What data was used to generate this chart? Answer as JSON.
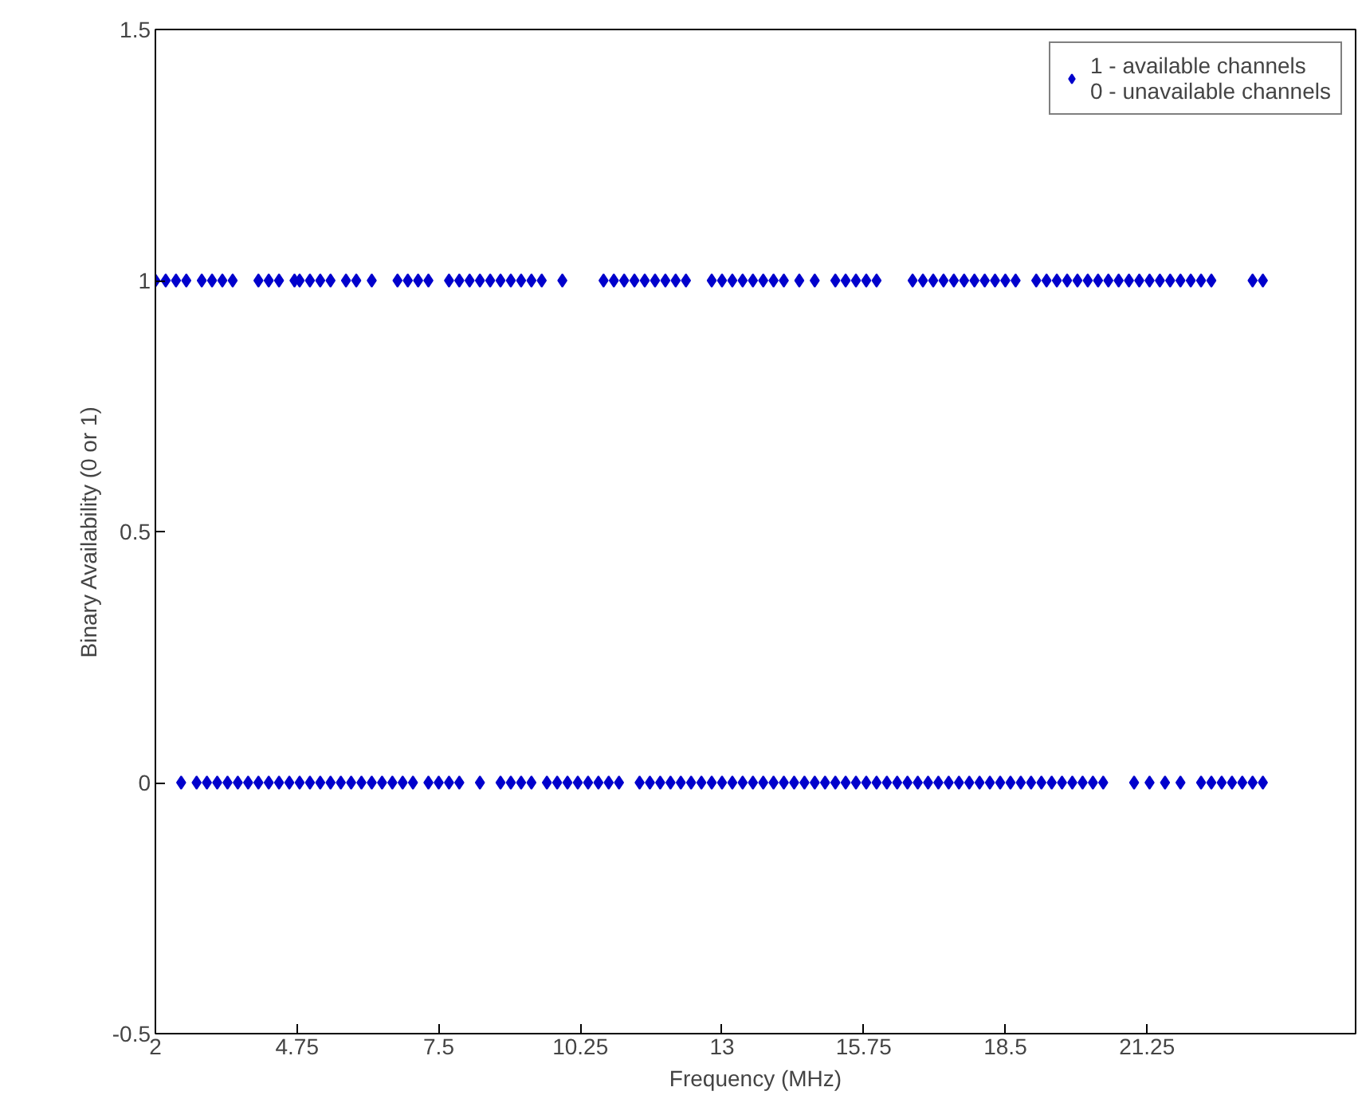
{
  "chart_data": {
    "type": "scatter",
    "xlabel": "Frequency (MHz)",
    "ylabel": "Binary Availability (0 or 1)",
    "xlim": [
      2,
      25.3
    ],
    "xticks": [
      2,
      4.75,
      7.5,
      10.25,
      13,
      15.75,
      18.5,
      21.25
    ],
    "ylim": [
      -0.5,
      1.5
    ],
    "yticks": [
      -0.5,
      0,
      0.5,
      1,
      1.5
    ],
    "grid": false,
    "legend": "top right",
    "marker": "diamond",
    "series": [
      {
        "name": "1 - available channels\n0 - unavailable channels",
        "color": "#0000cc",
        "x": [
          2.0,
          2.2,
          2.4,
          2.6,
          2.9,
          3.1,
          3.3,
          3.5,
          4.0,
          4.2,
          4.4,
          4.7,
          4.8,
          5.0,
          5.2,
          5.4,
          5.7,
          5.9,
          6.2,
          6.7,
          6.9,
          7.1,
          7.3,
          7.7,
          7.9,
          8.1,
          8.3,
          8.5,
          8.7,
          8.9,
          9.1,
          9.3,
          9.5,
          9.9,
          10.7,
          10.9,
          11.1,
          11.3,
          11.5,
          11.7,
          11.9,
          12.1,
          12.3,
          12.8,
          13.0,
          13.2,
          13.4,
          13.6,
          13.8,
          14.0,
          14.2,
          14.5,
          14.8,
          15.2,
          15.4,
          15.6,
          15.8,
          16.0,
          16.7,
          16.9,
          17.1,
          17.3,
          17.5,
          17.7,
          17.9,
          18.1,
          18.3,
          18.5,
          18.7,
          19.1,
          19.3,
          19.5,
          19.7,
          19.9,
          20.1,
          20.3,
          20.5,
          20.7,
          20.9,
          21.1,
          21.3,
          21.5,
          21.7,
          21.9,
          22.1,
          22.3,
          22.5,
          23.3,
          23.5,
          2.5,
          2.8,
          3.0,
          3.2,
          3.4,
          3.6,
          3.8,
          4.0,
          4.2,
          4.4,
          4.6,
          4.8,
          5.0,
          5.2,
          5.4,
          5.6,
          5.8,
          6.0,
          6.2,
          6.4,
          6.6,
          6.8,
          7.0,
          7.3,
          7.5,
          7.7,
          7.9,
          8.3,
          8.7,
          8.9,
          9.1,
          9.3,
          9.6,
          9.8,
          10.0,
          10.2,
          10.4,
          10.6,
          10.8,
          11.0,
          11.4,
          11.6,
          11.8,
          12.0,
          12.2,
          12.4,
          12.6,
          12.8,
          13.0,
          13.2,
          13.4,
          13.6,
          13.8,
          14.0,
          14.2,
          14.4,
          14.6,
          14.8,
          15.0,
          15.2,
          15.4,
          15.6,
          15.8,
          16.0,
          16.2,
          16.4,
          16.6,
          16.8,
          17.0,
          17.2,
          17.4,
          17.6,
          17.8,
          18.0,
          18.2,
          18.4,
          18.6,
          18.8,
          19.0,
          19.2,
          19.4,
          19.6,
          19.8,
          20.0,
          20.2,
          20.4,
          21.0,
          21.3,
          21.6,
          21.9,
          22.3,
          22.5,
          22.7,
          22.9,
          23.1,
          23.3,
          23.5
        ],
        "values": [
          1,
          1,
          1,
          1,
          1,
          1,
          1,
          1,
          1,
          1,
          1,
          1,
          1,
          1,
          1,
          1,
          1,
          1,
          1,
          1,
          1,
          1,
          1,
          1,
          1,
          1,
          1,
          1,
          1,
          1,
          1,
          1,
          1,
          1,
          1,
          1,
          1,
          1,
          1,
          1,
          1,
          1,
          1,
          1,
          1,
          1,
          1,
          1,
          1,
          1,
          1,
          1,
          1,
          1,
          1,
          1,
          1,
          1,
          1,
          1,
          1,
          1,
          1,
          1,
          1,
          1,
          1,
          1,
          1,
          1,
          1,
          1,
          1,
          1,
          1,
          1,
          1,
          1,
          1,
          1,
          1,
          1,
          1,
          1,
          1,
          1,
          1,
          1,
          1,
          0,
          0,
          0,
          0,
          0,
          0,
          0,
          0,
          0,
          0,
          0,
          0,
          0,
          0,
          0,
          0,
          0,
          0,
          0,
          0,
          0,
          0,
          0,
          0,
          0,
          0,
          0,
          0,
          0,
          0,
          0,
          0,
          0,
          0,
          0,
          0,
          0,
          0,
          0,
          0,
          0,
          0,
          0,
          0,
          0,
          0,
          0,
          0,
          0,
          0,
          0,
          0,
          0,
          0,
          0,
          0,
          0,
          0,
          0,
          0,
          0,
          0,
          0,
          0,
          0,
          0,
          0,
          0,
          0,
          0,
          0,
          0,
          0,
          0,
          0,
          0,
          0,
          0,
          0,
          0,
          0,
          0,
          0,
          0,
          0,
          0,
          0,
          0,
          0,
          0,
          0,
          0,
          0,
          0,
          0,
          0,
          0
        ]
      }
    ]
  }
}
